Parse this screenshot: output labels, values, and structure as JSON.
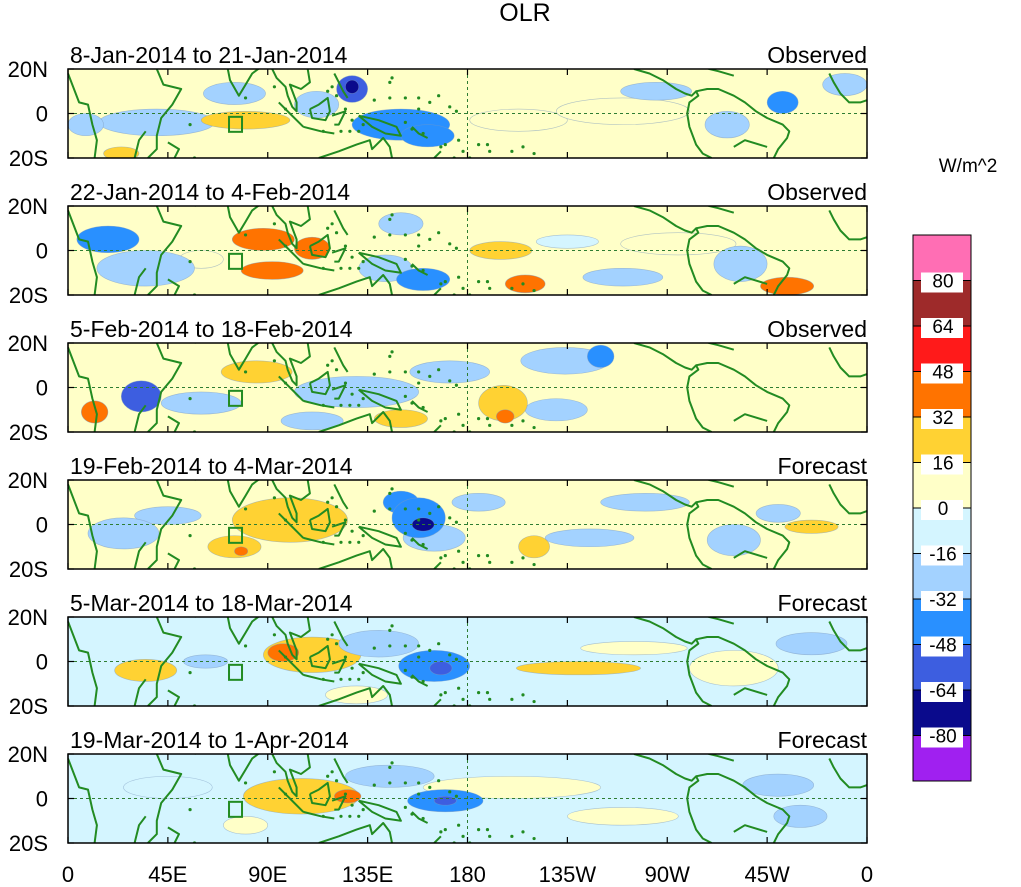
{
  "chart_data": {
    "type": "heatmap",
    "title": "OLR",
    "units_label": "W/m^2",
    "x_axis": {
      "range_deg_east": [
        0,
        360
      ],
      "ticks": [
        {
          "deg": 0,
          "label": "0"
        },
        {
          "deg": 45,
          "label": "45E"
        },
        {
          "deg": 90,
          "label": "90E"
        },
        {
          "deg": 135,
          "label": "135E"
        },
        {
          "deg": 180,
          "label": "180"
        },
        {
          "deg": 225,
          "label": "135W"
        },
        {
          "deg": 270,
          "label": "90W"
        },
        {
          "deg": 315,
          "label": "45W"
        },
        {
          "deg": 360,
          "label": "0"
        }
      ]
    },
    "y_axis": {
      "range_deg": [
        -20,
        20
      ],
      "ticks": [
        {
          "deg": 20,
          "label": "20N"
        },
        {
          "deg": 0,
          "label": "0"
        },
        {
          "deg": -20,
          "label": "20S"
        }
      ]
    },
    "colorbar": {
      "levels": [
        {
          "color": "#ff6eb4",
          "label": ""
        },
        {
          "color": "#9e2a2a",
          "label": "80"
        },
        {
          "color": "#ff1a1a",
          "label": "64"
        },
        {
          "color": "#ff7300",
          "label": "48"
        },
        {
          "color": "#ffd233",
          "label": "32"
        },
        {
          "color": "#ffffc8",
          "label": "16"
        },
        {
          "color": "#d4f5ff",
          "label": "0"
        },
        {
          "color": "#a3d2ff",
          "label": "-16"
        },
        {
          "color": "#2990ff",
          "label": "-32"
        },
        {
          "color": "#3d5ee0",
          "label": "-48"
        },
        {
          "color": "#0a0a8c",
          "label": "-64"
        },
        {
          "color": "#a020f0",
          "label": "-80"
        }
      ]
    },
    "panels": [
      {
        "period": "8-Jan-2014 to 21-Jan-2014",
        "kind": "Observed",
        "base": 0,
        "anomalies": [
          {
            "lon": 128,
            "lat": 11,
            "rx": 7,
            "ry": 6,
            "v": -60
          },
          {
            "lon": 128,
            "lat": 12,
            "rx": 3,
            "ry": 3,
            "v": -75
          },
          {
            "lon": 150,
            "lat": -5,
            "rx": 22,
            "ry": 7,
            "v": -35
          },
          {
            "lon": 162,
            "lat": -10,
            "rx": 12,
            "ry": 5,
            "v": -45
          },
          {
            "lon": 112,
            "lat": 4,
            "rx": 10,
            "ry": 6,
            "v": -20
          },
          {
            "lon": 40,
            "lat": -4,
            "rx": 26,
            "ry": 6,
            "v": -22
          },
          {
            "lon": 8,
            "lat": -5,
            "rx": 8,
            "ry": 5,
            "v": -22
          },
          {
            "lon": 80,
            "lat": -3,
            "rx": 20,
            "ry": 4,
            "v": 22
          },
          {
            "lon": 75,
            "lat": 9,
            "rx": 14,
            "ry": 5,
            "v": -18
          },
          {
            "lon": 203,
            "lat": -3,
            "rx": 22,
            "ry": 5,
            "v": 10
          },
          {
            "lon": 250,
            "lat": 1,
            "rx": 30,
            "ry": 6,
            "v": 10
          },
          {
            "lon": 322,
            "lat": 5,
            "rx": 7,
            "ry": 5,
            "v": -40
          },
          {
            "lon": 297,
            "lat": -5,
            "rx": 10,
            "ry": 6,
            "v": -22
          },
          {
            "lon": 24,
            "lat": -18,
            "rx": 8,
            "ry": 3,
            "v": 30
          },
          {
            "lon": 265,
            "lat": 10,
            "rx": 16,
            "ry": 4,
            "v": -18
          },
          {
            "lon": 350,
            "lat": 13,
            "rx": 10,
            "ry": 5,
            "v": -20
          }
        ]
      },
      {
        "period": "22-Jan-2014 to 4-Feb-2014",
        "kind": "Observed",
        "base": 0,
        "anomalies": [
          {
            "lon": 88,
            "lat": 5,
            "rx": 14,
            "ry": 5,
            "v": 36
          },
          {
            "lon": 110,
            "lat": 1,
            "rx": 8,
            "ry": 5,
            "v": 40
          },
          {
            "lon": 92,
            "lat": -9,
            "rx": 14,
            "ry": 4,
            "v": 40
          },
          {
            "lon": 160,
            "lat": -13,
            "rx": 12,
            "ry": 5,
            "v": -45
          },
          {
            "lon": 143,
            "lat": -8,
            "rx": 12,
            "ry": 6,
            "v": -30
          },
          {
            "lon": 18,
            "lat": 5,
            "rx": 14,
            "ry": 6,
            "v": -35
          },
          {
            "lon": 35,
            "lat": -8,
            "rx": 22,
            "ry": 8,
            "v": -20
          },
          {
            "lon": 195,
            "lat": 0,
            "rx": 14,
            "ry": 4,
            "v": 20
          },
          {
            "lon": 225,
            "lat": 4,
            "rx": 14,
            "ry": 3,
            "v": -5
          },
          {
            "lon": 206,
            "lat": -15,
            "rx": 9,
            "ry": 4,
            "v": 42
          },
          {
            "lon": 275,
            "lat": 3,
            "rx": 26,
            "ry": 5,
            "v": 8
          },
          {
            "lon": 324,
            "lat": -16,
            "rx": 12,
            "ry": 4,
            "v": 40
          },
          {
            "lon": 303,
            "lat": -6,
            "rx": 12,
            "ry": 8,
            "v": -22
          },
          {
            "lon": 150,
            "lat": 12,
            "rx": 10,
            "ry": 5,
            "v": -18
          },
          {
            "lon": 250,
            "lat": -12,
            "rx": 18,
            "ry": 4,
            "v": -18
          },
          {
            "lon": 60,
            "lat": -4,
            "rx": 10,
            "ry": 4,
            "v": 10
          }
        ]
      },
      {
        "period": "5-Feb-2014 to 18-Feb-2014",
        "kind": "Observed",
        "base": 0,
        "anomalies": [
          {
            "lon": 33,
            "lat": -4,
            "rx": 9,
            "ry": 7,
            "v": -50
          },
          {
            "lon": 60,
            "lat": -7,
            "rx": 18,
            "ry": 5,
            "v": -22
          },
          {
            "lon": 130,
            "lat": -2,
            "rx": 28,
            "ry": 7,
            "v": -25
          },
          {
            "lon": 85,
            "lat": 7,
            "rx": 16,
            "ry": 5,
            "v": 22
          },
          {
            "lon": 12,
            "lat": -11,
            "rx": 6,
            "ry": 5,
            "v": 40
          },
          {
            "lon": 196,
            "lat": -7,
            "rx": 11,
            "ry": 8,
            "v": 28
          },
          {
            "lon": 197,
            "lat": -13,
            "rx": 4,
            "ry": 3,
            "v": 40
          },
          {
            "lon": 240,
            "lat": 14,
            "rx": 6,
            "ry": 5,
            "v": -45
          },
          {
            "lon": 224,
            "lat": 12,
            "rx": 20,
            "ry": 6,
            "v": -18
          },
          {
            "lon": 172,
            "lat": 7,
            "rx": 18,
            "ry": 5,
            "v": -18
          },
          {
            "lon": 150,
            "lat": -14,
            "rx": 12,
            "ry": 4,
            "v": 18
          },
          {
            "lon": 110,
            "lat": -15,
            "rx": 14,
            "ry": 4,
            "v": -18
          },
          {
            "lon": 220,
            "lat": -10,
            "rx": 14,
            "ry": 5,
            "v": -18
          }
        ]
      },
      {
        "period": "19-Feb-2014 to 4-Mar-2014",
        "kind": "Forecast",
        "base": 0,
        "anomalies": [
          {
            "lon": 158,
            "lat": 3,
            "rx": 12,
            "ry": 9,
            "v": -45
          },
          {
            "lon": 160,
            "lat": 0,
            "rx": 5,
            "ry": 3,
            "v": -70
          },
          {
            "lon": 150,
            "lat": 10,
            "rx": 8,
            "ry": 5,
            "v": -40
          },
          {
            "lon": 165,
            "lat": -6,
            "rx": 14,
            "ry": 6,
            "v": -22
          },
          {
            "lon": 100,
            "lat": 2,
            "rx": 26,
            "ry": 10,
            "v": 24
          },
          {
            "lon": 75,
            "lat": -10,
            "rx": 12,
            "ry": 5,
            "v": 28
          },
          {
            "lon": 78,
            "lat": -12,
            "rx": 3,
            "ry": 2,
            "v": 40
          },
          {
            "lon": 45,
            "lat": 4,
            "rx": 15,
            "ry": 4,
            "v": -18
          },
          {
            "lon": 25,
            "lat": -4,
            "rx": 16,
            "ry": 7,
            "v": -18
          },
          {
            "lon": 210,
            "lat": -10,
            "rx": 7,
            "ry": 5,
            "v": 25
          },
          {
            "lon": 320,
            "lat": 5,
            "rx": 10,
            "ry": 4,
            "v": -32
          },
          {
            "lon": 335,
            "lat": -1,
            "rx": 12,
            "ry": 3,
            "v": 20
          },
          {
            "lon": 300,
            "lat": -7,
            "rx": 12,
            "ry": 7,
            "v": -20
          },
          {
            "lon": 260,
            "lat": 10,
            "rx": 20,
            "ry": 4,
            "v": -18
          },
          {
            "lon": 235,
            "lat": -6,
            "rx": 20,
            "ry": 4,
            "v": -18
          },
          {
            "lon": 185,
            "lat": 10,
            "rx": 12,
            "ry": 4,
            "v": -18
          }
        ]
      },
      {
        "period": "5-Mar-2014 to 18-Mar-2014",
        "kind": "Forecast",
        "base": -10,
        "anomalies": [
          {
            "lon": 165,
            "lat": -2,
            "rx": 16,
            "ry": 7,
            "v": -36
          },
          {
            "lon": 168,
            "lat": -3,
            "rx": 5,
            "ry": 3,
            "v": -55
          },
          {
            "lon": 140,
            "lat": 8,
            "rx": 18,
            "ry": 6,
            "v": -25
          },
          {
            "lon": 110,
            "lat": 3,
            "rx": 22,
            "ry": 8,
            "v": 24
          },
          {
            "lon": 97,
            "lat": 4,
            "rx": 7,
            "ry": 4,
            "v": 40
          },
          {
            "lon": 230,
            "lat": -3,
            "rx": 28,
            "ry": 3,
            "v": 24
          },
          {
            "lon": 35,
            "lat": -4,
            "rx": 14,
            "ry": 5,
            "v": 20
          },
          {
            "lon": 62,
            "lat": 0,
            "rx": 10,
            "ry": 3,
            "v": -25
          },
          {
            "lon": 300,
            "lat": -3,
            "rx": 20,
            "ry": 8,
            "v": 8
          },
          {
            "lon": 335,
            "lat": 8,
            "rx": 16,
            "ry": 5,
            "v": -22
          },
          {
            "lon": 255,
            "lat": 6,
            "rx": 24,
            "ry": 3,
            "v": 8
          },
          {
            "lon": 130,
            "lat": -15,
            "rx": 14,
            "ry": 4,
            "v": 12
          }
        ]
      },
      {
        "period": "19-Mar-2014 to 1-Apr-2014",
        "kind": "Forecast",
        "base": -10,
        "anomalies": [
          {
            "lon": 170,
            "lat": -1,
            "rx": 17,
            "ry": 5,
            "v": -42
          },
          {
            "lon": 170,
            "lat": -1,
            "rx": 5,
            "ry": 2,
            "v": -60
          },
          {
            "lon": 105,
            "lat": 1,
            "rx": 26,
            "ry": 8,
            "v": 24
          },
          {
            "lon": 126,
            "lat": 1,
            "rx": 6,
            "ry": 3,
            "v": 42
          },
          {
            "lon": 145,
            "lat": 10,
            "rx": 20,
            "ry": 5,
            "v": -22
          },
          {
            "lon": 200,
            "lat": 5,
            "rx": 40,
            "ry": 5,
            "v": 8
          },
          {
            "lon": 320,
            "lat": 6,
            "rx": 16,
            "ry": 5,
            "v": -32
          },
          {
            "lon": 330,
            "lat": -8,
            "rx": 12,
            "ry": 5,
            "v": -20
          },
          {
            "lon": 45,
            "lat": 5,
            "rx": 20,
            "ry": 5,
            "v": -8
          },
          {
            "lon": 250,
            "lat": -8,
            "rx": 25,
            "ry": 4,
            "v": 8
          },
          {
            "lon": 80,
            "lat": -12,
            "rx": 10,
            "ry": 4,
            "v": 12
          }
        ]
      }
    ]
  }
}
